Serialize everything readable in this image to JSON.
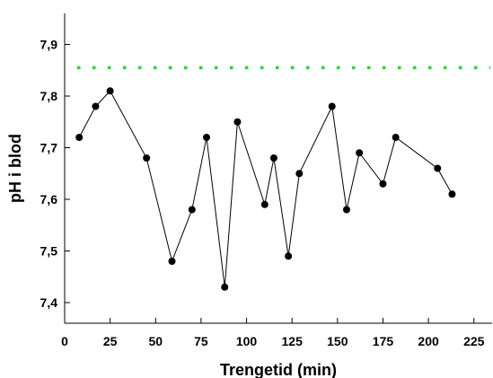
{
  "chart_data": {
    "type": "line",
    "title": "",
    "xlabel": "Trengetid (min)",
    "ylabel": "pH i blod",
    "xlim": [
      0,
      235
    ],
    "ylim": [
      7.36,
      7.96
    ],
    "x_ticks": [
      0,
      25,
      50,
      75,
      100,
      125,
      150,
      175,
      200,
      225
    ],
    "x_tick_labels": [
      "0",
      "25",
      "50",
      "75",
      "100",
      "125",
      "150",
      "175",
      "200",
      "225"
    ],
    "y_ticks": [
      7.4,
      7.5,
      7.6,
      7.7,
      7.8,
      7.9
    ],
    "y_tick_labels": [
      "7,4",
      "7,5",
      "7,6",
      "7,7",
      "7,8",
      "7,9"
    ],
    "grid": false,
    "series": [
      {
        "color": "#000000",
        "marker": "circle",
        "x": [
          8,
          17,
          25,
          45,
          59,
          70,
          78,
          88,
          95,
          110,
          115,
          123,
          129,
          147,
          155,
          162,
          175,
          182,
          205,
          213
        ],
        "y": [
          7.72,
          7.78,
          7.81,
          7.68,
          7.48,
          7.58,
          7.72,
          7.43,
          7.75,
          7.59,
          7.68,
          7.49,
          7.65,
          7.78,
          7.58,
          7.69,
          7.63,
          7.72,
          7.66,
          7.61
        ]
      }
    ],
    "reference_line": {
      "y": 7.855,
      "style": "dotted",
      "color": "#22dd22"
    }
  }
}
